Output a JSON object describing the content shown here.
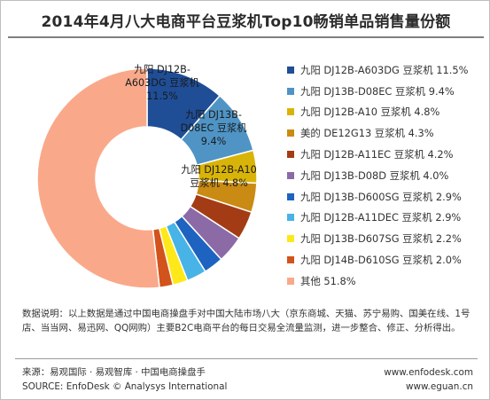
{
  "title": "2014年4月八大电商平台豆浆机Top10畅销单品销售量份额",
  "chart_data": {
    "type": "pie",
    "donut": true,
    "legend_position": "right",
    "slices": [
      {
        "name": "九阳 DJ12B-A603DG 豆浆机",
        "value": 11.5,
        "color": "#1f4e97",
        "legend_label": "九阳 DJ12B-A603DG 豆浆机 11.5%",
        "label_lines": [
          "九阳 DJ12B-",
          "A603DG 豆浆机",
          "11.5%"
        ]
      },
      {
        "name": "九阳 DJ13B-D08EC 豆浆机",
        "value": 9.4,
        "color": "#4f94c5",
        "legend_label": "九阳 DJ13B-D08EC 豆浆机 9.4%",
        "label_lines": [
          "九阳 DJ13B-",
          "D08EC 豆浆机",
          "9.4%"
        ]
      },
      {
        "name": "九阳 DJ12B-A10 豆浆机",
        "value": 4.8,
        "color": "#d9b408",
        "legend_label": "九阳 DJ12B-A10 豆浆机 4.8%",
        "label_lines": [
          "九阳 DJ12B-A10",
          "豆浆机 4.8%"
        ]
      },
      {
        "name": "美的 DE12G13 豆浆机",
        "value": 4.3,
        "color": "#c98b13",
        "legend_label": "美的 DE12G13 豆浆机 4.3%",
        "label_lines": []
      },
      {
        "name": "九阳 DJ12B-A11EC 豆浆机",
        "value": 4.2,
        "color": "#a33c14",
        "legend_label": "九阳 DJ12B-A11EC 豆浆机 4.2%",
        "label_lines": []
      },
      {
        "name": "九阳 DJ13B-D08D 豆浆机",
        "value": 4.0,
        "color": "#8b6aa6",
        "legend_label": "九阳 DJ13B-D08D 豆浆机 4.0%",
        "label_lines": []
      },
      {
        "name": "九阳 DJ13B-D600SG 豆浆机",
        "value": 2.9,
        "color": "#1e63c0",
        "legend_label": "九阳 DJ13B-D600SG 豆浆机 2.9%",
        "label_lines": []
      },
      {
        "name": "九阳 DJ12B-A11DEC 豆浆机",
        "value": 2.9,
        "color": "#48b3e6",
        "legend_label": "九阳 DJ12B-A11DEC 豆浆机 2.9%",
        "label_lines": []
      },
      {
        "name": "九阳 DJ13B-D607SG 豆浆机",
        "value": 2.2,
        "color": "#ffe81a",
        "legend_label": "九阳 DJ13B-D607SG 豆浆机 2.2%",
        "label_lines": []
      },
      {
        "name": "九阳 DJ14B-D610SG 豆浆机",
        "value": 2.0,
        "color": "#d2531c",
        "legend_label": "九阳 DJ14B-D610SG 豆浆机 2.0%",
        "label_lines": []
      },
      {
        "name": "其他",
        "value": 51.8,
        "color": "#f9a98a",
        "legend_label": "其他 51.8%",
        "label_lines": []
      }
    ]
  },
  "note": "数据说明：以上数据是通过中国电商操盘手对中国大陆市场八大（京东商城、天猫、苏宁易购、国美在线、1号店、当当网、易迅网、QQ网购）主要B2C电商平台的每日交易全流量监测，进一步整合、修正、分析得出。",
  "footer": {
    "source_cn": "来源：易观国际 · 易观智库 · 中国电商操盘手",
    "source_en": "SOURCE: EnfoDesk © Analysys International",
    "url1": "www.enfodesk.com",
    "url2": "www.eguan.cn"
  }
}
